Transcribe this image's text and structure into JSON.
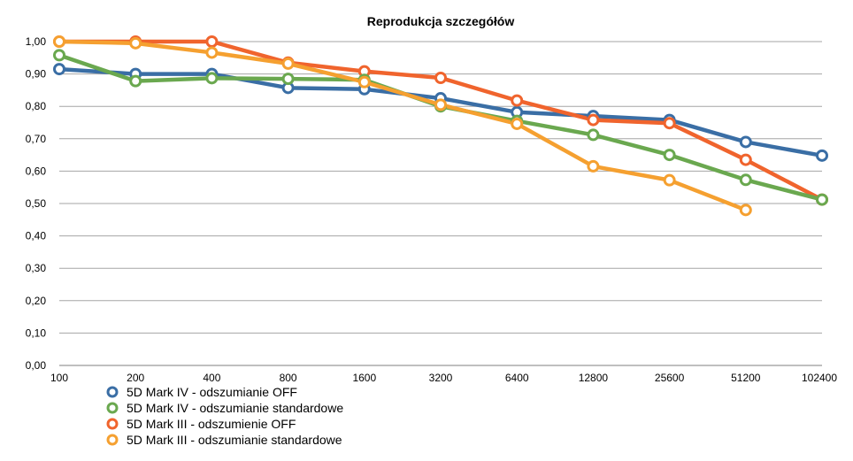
{
  "chart_data": {
    "type": "line",
    "title": "Reprodukcja szczegółów",
    "xlabel": "",
    "ylabel": "",
    "categories": [
      "100",
      "200",
      "400",
      "800",
      "1600",
      "3200",
      "6400",
      "12800",
      "25600",
      "51200",
      "102400"
    ],
    "ylim": [
      0,
      1
    ],
    "y_ticks": [
      "0,00",
      "0,10",
      "0,20",
      "0,30",
      "0,40",
      "0,50",
      "0,60",
      "0,70",
      "0,80",
      "0,90",
      "1,00"
    ],
    "grid": true,
    "legend_position": "bottom-left",
    "series": [
      {
        "name": "5D Mark IV - odszumianie OFF",
        "color": "#3a6ea5",
        "values": [
          0.915,
          0.9,
          0.9,
          0.857,
          0.853,
          0.825,
          0.782,
          0.77,
          0.758,
          0.69,
          0.648
        ]
      },
      {
        "name": "5D Mark IV - odszumianie standardowe",
        "color": "#6aa84f",
        "values": [
          0.958,
          0.878,
          0.887,
          0.885,
          0.882,
          0.8,
          0.755,
          0.712,
          0.65,
          0.573,
          0.512
        ]
      },
      {
        "name": "5D Mark III - odszumienie OFF",
        "color": "#f0642d",
        "values": [
          1.0,
          1.0,
          1.0,
          0.935,
          0.908,
          0.888,
          0.818,
          0.758,
          0.748,
          0.635,
          0.512
        ]
      },
      {
        "name": "5D Mark III - odszumianie standardowe",
        "color": "#f5a030",
        "values": [
          1.0,
          0.995,
          0.966,
          0.932,
          0.875,
          0.805,
          0.746,
          0.615,
          0.572,
          0.48,
          null
        ]
      }
    ]
  }
}
